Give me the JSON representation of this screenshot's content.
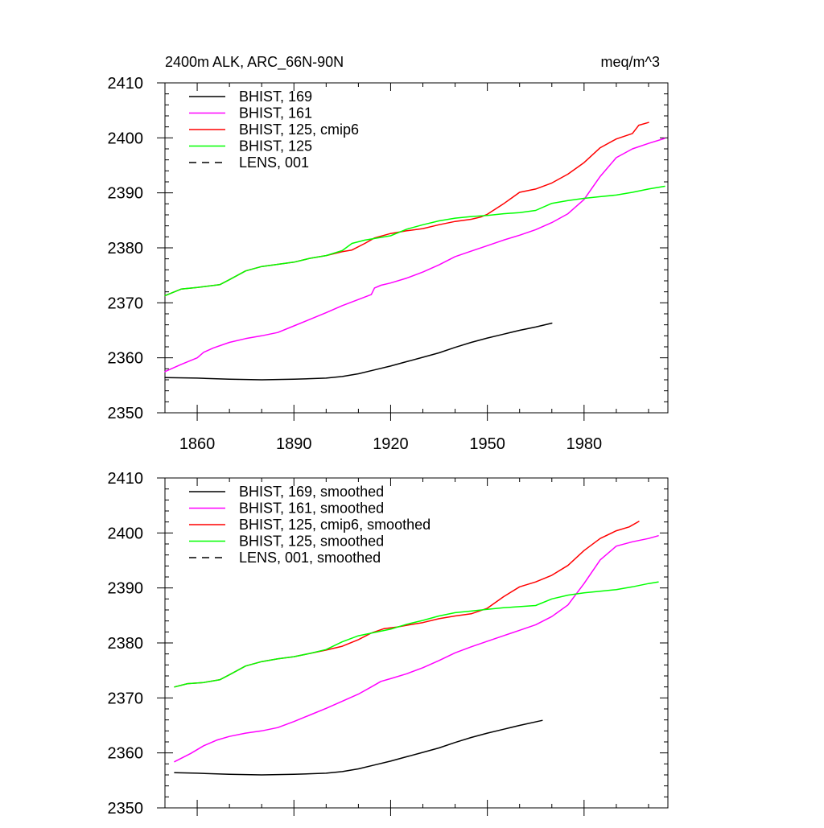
{
  "chart_data": [
    {
      "type": "line",
      "title_left": "2400m ALK, ARC_66N-90N",
      "title_right": "meq/m^3",
      "xlim": [
        1850,
        2006
      ],
      "ylim": [
        2350,
        2410
      ],
      "xticks": [
        1860,
        1890,
        1920,
        1950,
        1980
      ],
      "yticks": [
        2350,
        2360,
        2370,
        2380,
        2390,
        2400,
        2410
      ],
      "xtick_labels_shown": true,
      "legend_position": "top-left",
      "series": [
        {
          "name": "BHIST, 169",
          "color": "#000000",
          "dash": "solid",
          "x": [
            1850,
            1860,
            1870,
            1880,
            1890,
            1900,
            1905,
            1910,
            1915,
            1920,
            1925,
            1930,
            1935,
            1940,
            1945,
            1950,
            1955,
            1960,
            1965,
            1970
          ],
          "y": [
            2356.4,
            2356.3,
            2356.1,
            2356.0,
            2356.1,
            2356.3,
            2356.6,
            2357.1,
            2357.8,
            2358.5,
            2359.3,
            2360.1,
            2360.9,
            2361.9,
            2362.8,
            2363.6,
            2364.3,
            2365.0,
            2365.6,
            2366.3
          ]
        },
        {
          "name": "BHIST, 161",
          "color": "#ff00ff",
          "dash": "solid",
          "x": [
            1850,
            1855,
            1860,
            1862,
            1865,
            1870,
            1875,
            1880,
            1885,
            1890,
            1895,
            1900,
            1905,
            1910,
            1914,
            1915,
            1917,
            1920,
            1925,
            1930,
            1935,
            1940,
            1945,
            1950,
            1955,
            1960,
            1965,
            1970,
            1975,
            1980,
            1985,
            1990,
            1995,
            2000,
            2005
          ],
          "y": [
            2357.5,
            2358.8,
            2360.0,
            2361.0,
            2361.8,
            2362.8,
            2363.5,
            2364.0,
            2364.6,
            2365.8,
            2367.0,
            2368.2,
            2369.5,
            2370.6,
            2371.5,
            2372.7,
            2373.2,
            2373.6,
            2374.5,
            2375.6,
            2376.9,
            2378.4,
            2379.4,
            2380.4,
            2381.4,
            2382.3,
            2383.3,
            2384.6,
            2386.2,
            2388.8,
            2393.0,
            2396.4,
            2398.0,
            2399.0,
            2399.9
          ]
        },
        {
          "name": "BHIST, 125, cmip6",
          "color": "#ff0000",
          "dash": "solid",
          "x": [
            1850,
            1855,
            1860,
            1867,
            1870,
            1875,
            1880,
            1885,
            1890,
            1895,
            1900,
            1905,
            1908,
            1912,
            1915,
            1920,
            1925,
            1930,
            1935,
            1940,
            1945,
            1948,
            1950,
            1955,
            1960,
            1965,
            1970,
            1975,
            1980,
            1985,
            1990,
            1995,
            1997,
            2000
          ],
          "y": [
            2371.3,
            2372.5,
            2372.8,
            2373.3,
            2374.2,
            2375.8,
            2376.6,
            2377.0,
            2377.4,
            2378.1,
            2378.6,
            2379.3,
            2379.6,
            2380.8,
            2381.8,
            2382.6,
            2383.1,
            2383.5,
            2384.2,
            2384.8,
            2385.2,
            2385.6,
            2386.1,
            2388.0,
            2390.1,
            2390.7,
            2391.8,
            2393.4,
            2395.5,
            2398.2,
            2399.8,
            2400.8,
            2402.3,
            2402.8
          ]
        },
        {
          "name": "BHIST, 125",
          "color": "#00ff00",
          "dash": "solid",
          "x": [
            1850,
            1855,
            1860,
            1867,
            1870,
            1875,
            1880,
            1885,
            1890,
            1895,
            1900,
            1905,
            1908,
            1912,
            1915,
            1920,
            1925,
            1930,
            1935,
            1940,
            1945,
            1950,
            1955,
            1960,
            1965,
            1970,
            1975,
            1980,
            1985,
            1990,
            1995,
            2000,
            2005
          ],
          "y": [
            2371.3,
            2372.5,
            2372.8,
            2373.3,
            2374.2,
            2375.8,
            2376.6,
            2377.0,
            2377.4,
            2378.1,
            2378.6,
            2379.5,
            2380.8,
            2381.4,
            2381.7,
            2382.2,
            2383.4,
            2384.2,
            2384.9,
            2385.4,
            2385.7,
            2385.9,
            2386.2,
            2386.4,
            2386.8,
            2388.1,
            2388.6,
            2389.0,
            2389.3,
            2389.6,
            2390.1,
            2390.7,
            2391.2
          ]
        },
        {
          "name": "LENS, 001",
          "color": "#000000",
          "dash": "dashed",
          "x": [],
          "y": []
        }
      ]
    },
    {
      "type": "line",
      "title_left": "",
      "title_right": "",
      "xlim": [
        1850,
        2006
      ],
      "ylim": [
        2350,
        2410
      ],
      "xticks": [
        1860,
        1890,
        1920,
        1950,
        1980
      ],
      "yticks": [
        2350,
        2360,
        2370,
        2380,
        2390,
        2400,
        2410
      ],
      "xtick_labels_shown": false,
      "legend_position": "top-left",
      "series": [
        {
          "name": "BHIST, 169, smoothed",
          "color": "#000000",
          "dash": "solid",
          "x": [
            1853,
            1860,
            1870,
            1880,
            1890,
            1900,
            1905,
            1910,
            1915,
            1920,
            1925,
            1930,
            1935,
            1940,
            1945,
            1950,
            1955,
            1960,
            1967
          ],
          "y": [
            2356.4,
            2356.3,
            2356.1,
            2356.0,
            2356.1,
            2356.3,
            2356.6,
            2357.1,
            2357.8,
            2358.5,
            2359.3,
            2360.1,
            2360.9,
            2361.9,
            2362.8,
            2363.6,
            2364.3,
            2365.0,
            2365.9
          ]
        },
        {
          "name": "BHIST, 161, smoothed",
          "color": "#ff00ff",
          "dash": "solid",
          "x": [
            1853,
            1858,
            1862,
            1866,
            1870,
            1875,
            1880,
            1885,
            1890,
            1895,
            1900,
            1905,
            1910,
            1914,
            1917,
            1920,
            1925,
            1930,
            1935,
            1940,
            1945,
            1950,
            1955,
            1960,
            1965,
            1970,
            1975,
            1980,
            1985,
            1990,
            1995,
            2000,
            2003
          ],
          "y": [
            2358.4,
            2359.9,
            2361.3,
            2362.3,
            2363.0,
            2363.6,
            2364.0,
            2364.6,
            2365.7,
            2366.9,
            2368.1,
            2369.4,
            2370.7,
            2372.0,
            2373.0,
            2373.5,
            2374.4,
            2375.5,
            2376.8,
            2378.2,
            2379.3,
            2380.3,
            2381.3,
            2382.3,
            2383.3,
            2384.8,
            2386.9,
            2390.8,
            2395.1,
            2397.6,
            2398.4,
            2399.0,
            2399.5
          ]
        },
        {
          "name": "BHIST, 125, cmip6, smoothed",
          "color": "#ff0000",
          "dash": "solid",
          "x": [
            1853,
            1857,
            1862,
            1867,
            1870,
            1875,
            1880,
            1885,
            1890,
            1895,
            1900,
            1905,
            1910,
            1914,
            1918,
            1922,
            1926,
            1930,
            1935,
            1940,
            1945,
            1950,
            1955,
            1960,
            1965,
            1970,
            1975,
            1980,
            1985,
            1990,
            1994,
            1997
          ],
          "y": [
            2372.0,
            2372.6,
            2372.8,
            2373.3,
            2374.2,
            2375.8,
            2376.6,
            2377.1,
            2377.5,
            2378.1,
            2378.7,
            2379.4,
            2380.6,
            2381.8,
            2382.6,
            2382.9,
            2383.3,
            2383.7,
            2384.4,
            2384.9,
            2385.3,
            2386.3,
            2388.4,
            2390.2,
            2391.1,
            2392.3,
            2394.1,
            2396.8,
            2399.0,
            2400.4,
            2401.1,
            2402.1
          ]
        },
        {
          "name": "BHIST, 125, smoothed",
          "color": "#00ff00",
          "dash": "solid",
          "x": [
            1853,
            1857,
            1862,
            1867,
            1870,
            1875,
            1880,
            1885,
            1890,
            1895,
            1900,
            1905,
            1910,
            1915,
            1920,
            1925,
            1930,
            1935,
            1940,
            1945,
            1950,
            1955,
            1960,
            1965,
            1970,
            1975,
            1980,
            1985,
            1990,
            1995,
            2000,
            2003
          ],
          "y": [
            2372.0,
            2372.6,
            2372.8,
            2373.3,
            2374.2,
            2375.8,
            2376.6,
            2377.1,
            2377.5,
            2378.1,
            2378.8,
            2380.2,
            2381.3,
            2381.9,
            2382.5,
            2383.4,
            2384.1,
            2384.9,
            2385.5,
            2385.8,
            2386.1,
            2386.4,
            2386.6,
            2386.8,
            2388.0,
            2388.7,
            2389.1,
            2389.4,
            2389.7,
            2390.2,
            2390.8,
            2391.1
          ]
        },
        {
          "name": "LENS, 001, smoothed",
          "color": "#000000",
          "dash": "dashed",
          "x": [],
          "y": []
        }
      ]
    }
  ]
}
